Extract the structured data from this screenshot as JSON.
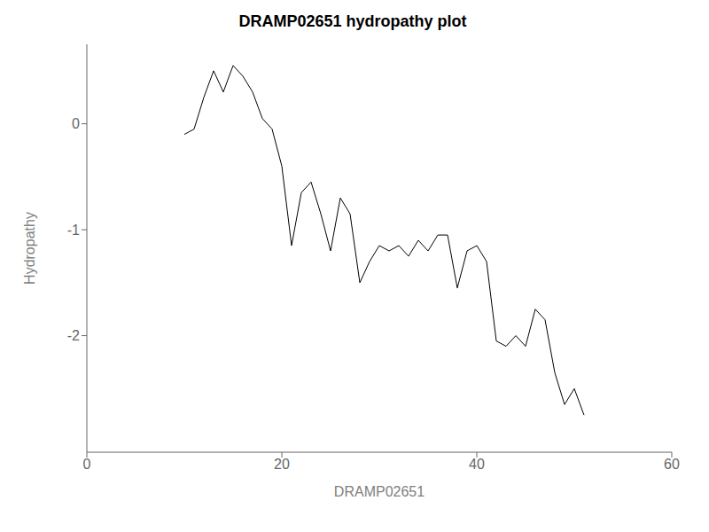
{
  "chart_data": {
    "type": "line",
    "title": "DRAMP02651 hydropathy plot",
    "xlabel": "DRAMP02651",
    "ylabel": "Hydropathy",
    "x": [
      10,
      11,
      12,
      13,
      14,
      15,
      16,
      17,
      18,
      19,
      20,
      21,
      22,
      23,
      24,
      25,
      26,
      27,
      28,
      29,
      30,
      31,
      32,
      33,
      34,
      35,
      36,
      37,
      38,
      39,
      40,
      41,
      42,
      43,
      44,
      45,
      46,
      47,
      48,
      49,
      50,
      51
    ],
    "values": [
      -0.1,
      -0.05,
      0.25,
      0.5,
      0.3,
      0.55,
      0.45,
      0.3,
      0.05,
      -0.05,
      -0.4,
      -1.15,
      -0.65,
      -0.55,
      -0.85,
      -1.2,
      -0.7,
      -0.85,
      -1.5,
      -1.3,
      -1.15,
      -1.2,
      -1.15,
      -1.25,
      -1.1,
      -1.2,
      -1.05,
      -1.05,
      -1.55,
      -1.2,
      -1.15,
      -1.3,
      -2.05,
      -2.1,
      -2.0,
      -2.1,
      -1.75,
      -1.85,
      -2.35,
      -2.65,
      -2.5,
      -2.75
    ],
    "color": "#000000",
    "xlim": [
      0,
      60
    ],
    "ylim": [
      -3.1,
      0.75
    ],
    "xticks": [
      0,
      20,
      40,
      60
    ],
    "yticks": [
      0,
      -1,
      -2
    ],
    "grid": false
  }
}
